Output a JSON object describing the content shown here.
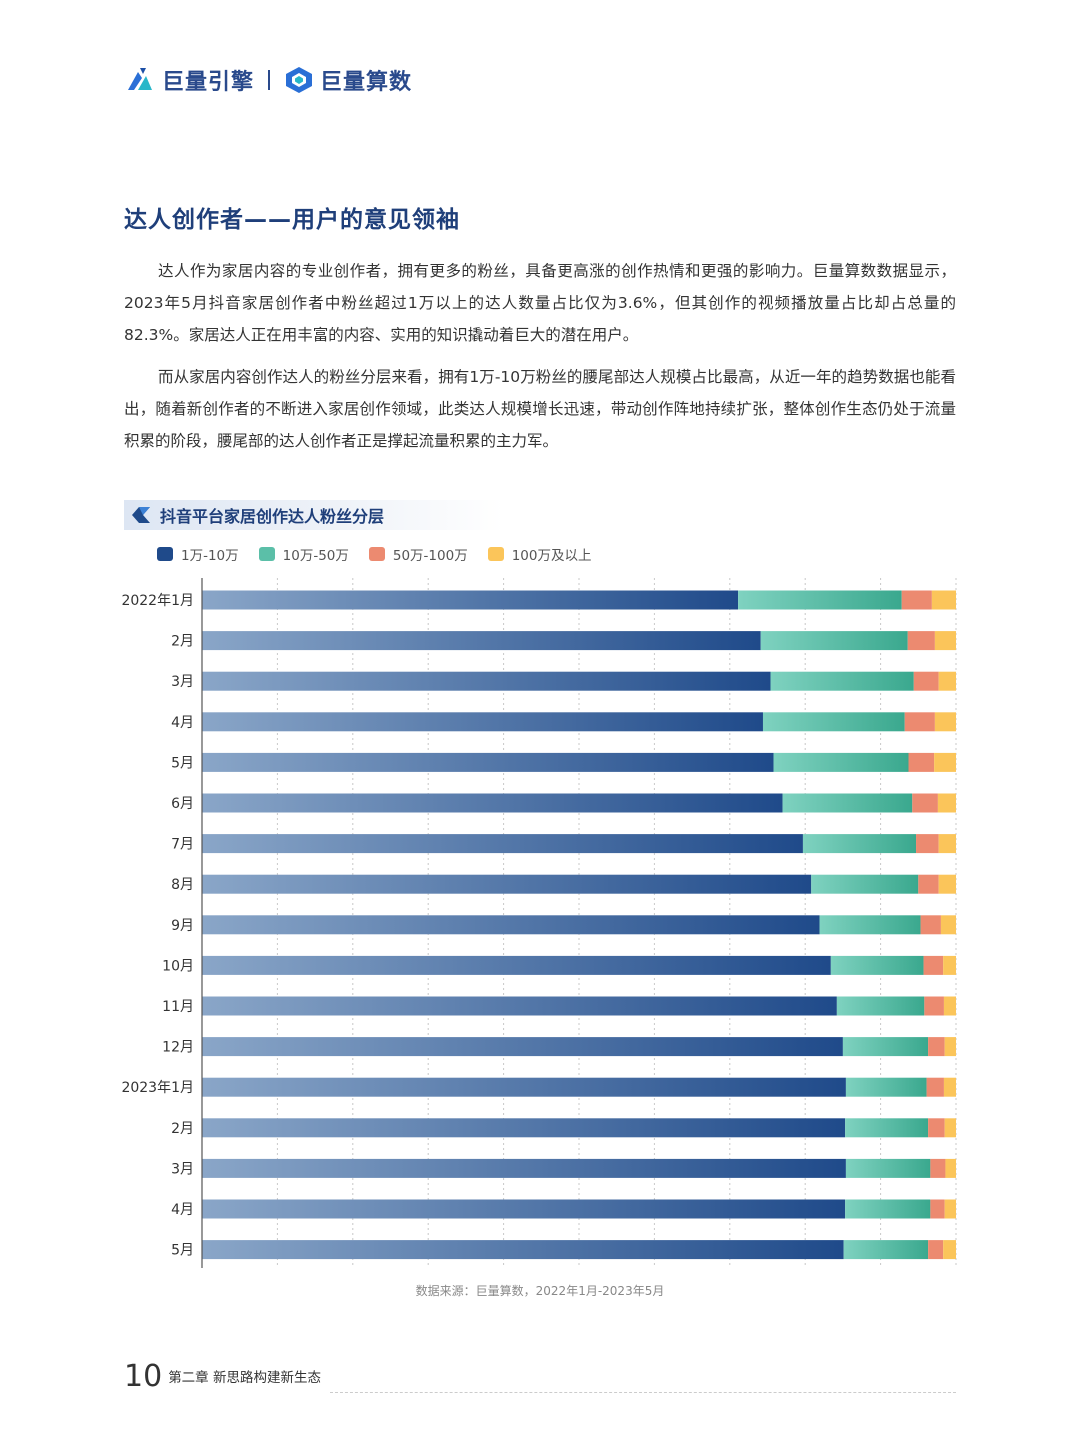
{
  "header": {
    "brand1": "巨量引擎",
    "brand2": "巨量算数"
  },
  "section": {
    "title": "达人创作者——用户的意见领袖",
    "para1": "达人作为家居内容的专业创作者，拥有更多的粉丝，具备更高涨的创作热情和更强的影响力。巨量算数数据显示，2023年5月抖音家居创作者中粉丝超过1万以上的达人数量占比仅为3.6%，但其创作的视频播放量占比却占总量的82.3%。家居达人正在用丰富的内容、实用的知识撬动着巨大的潜在用户。",
    "para2": "而从家居内容创作达人的粉丝分层来看，拥有1万-10万粉丝的腰尾部达人规模占比最高，从近一年的趋势数据也能看出，随着新创作者的不断进入家居创作领域，此类达人规模增长迅速，带动创作阵地持续扩张，整体创作生态仍处于流量积累的阶段，腰尾部的达人创作者正是撑起流量积累的主力军。"
  },
  "chart_data": {
    "type": "bar",
    "orientation": "horizontal",
    "stacked": true,
    "title": "抖音平台家居创作达人粉丝分层",
    "categories": [
      "2022年1月",
      "2月",
      "3月",
      "4月",
      "5月",
      "6月",
      "7月",
      "8月",
      "9月",
      "10月",
      "11月",
      "12月",
      "2023年1月",
      "2月",
      "3月",
      "4月",
      "5月"
    ],
    "series": [
      {
        "name": "1万-10万",
        "values": [
          71.1,
          74.1,
          75.4,
          74.4,
          75.8,
          77.0,
          79.7,
          80.8,
          81.9,
          83.4,
          84.2,
          85.0,
          85.4,
          85.3,
          85.4,
          85.3,
          85.1
        ]
      },
      {
        "name": "10万-50万",
        "values": [
          21.7,
          19.5,
          19.0,
          18.8,
          17.9,
          17.2,
          15.0,
          14.2,
          13.4,
          12.3,
          11.6,
          11.3,
          10.7,
          11.0,
          11.2,
          11.3,
          11.2
        ]
      },
      {
        "name": "50万-100万",
        "values": [
          4.0,
          3.6,
          3.3,
          4.0,
          3.4,
          3.4,
          3.0,
          2.7,
          2.7,
          2.6,
          2.6,
          2.2,
          2.3,
          2.2,
          2.0,
          1.9,
          2.0
        ]
      },
      {
        "name": "100万及以上",
        "values": [
          3.2,
          2.8,
          2.3,
          2.8,
          2.9,
          2.4,
          2.3,
          2.3,
          2.0,
          1.7,
          1.6,
          1.5,
          1.6,
          1.5,
          1.4,
          1.5,
          1.7
        ]
      }
    ],
    "xlim": [
      0,
      100
    ],
    "grid": true,
    "legend_position": "top-left",
    "colors": [
      "#1f4a8a",
      "#5bbfa8",
      "#ec8a70",
      "#fbc55a"
    ]
  },
  "source": "数据来源：巨量算数，2022年1月-2023年5月",
  "footer": {
    "page_number": "10",
    "chapter": "第二章 新思路构建新生态"
  }
}
